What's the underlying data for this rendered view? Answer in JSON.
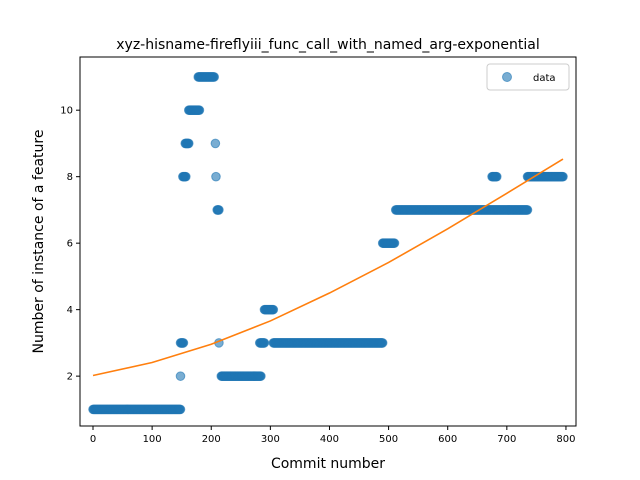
{
  "chart_data": {
    "type": "scatter",
    "title": "xyz-hisname-fireflyiii_func_call_with_named_arg-exponential",
    "xlabel": "Commit number",
    "ylabel": "Number of instance of a feature",
    "xlim": [
      -22,
      817
    ],
    "ylim": [
      0.5,
      11.6
    ],
    "xticks": [
      0,
      100,
      200,
      300,
      400,
      500,
      600,
      700,
      800
    ],
    "yticks": [
      2,
      4,
      6,
      8,
      10
    ],
    "grid": false,
    "legend": {
      "placement": "upper right",
      "entries": [
        "data"
      ]
    },
    "colors": {
      "data": "#1f77b4",
      "fit": "#ff7f0e"
    },
    "series": [
      {
        "name": "data",
        "kind": "scatter",
        "segments": [
          {
            "x_start": 0,
            "x_end": 148,
            "y": 1
          },
          {
            "x_start": 148,
            "x_end": 153,
            "y": 3
          },
          {
            "x_start": 152,
            "x_end": 157,
            "y": 8
          },
          {
            "x_start": 156,
            "x_end": 162,
            "y": 9
          },
          {
            "x_start": 162,
            "x_end": 180,
            "y": 10
          },
          {
            "x_start": 178,
            "x_end": 205,
            "y": 11
          },
          {
            "x_start": 207,
            "x_end": 207,
            "y": 9
          },
          {
            "x_start": 208,
            "x_end": 208,
            "y": 8
          },
          {
            "x_start": 210,
            "x_end": 213,
            "y": 7
          },
          {
            "x_start": 217,
            "x_end": 284,
            "y": 2
          },
          {
            "x_start": 282,
            "x_end": 290,
            "y": 3
          },
          {
            "x_start": 290,
            "x_end": 305,
            "y": 4
          },
          {
            "x_start": 305,
            "x_end": 490,
            "y": 3
          },
          {
            "x_start": 490,
            "x_end": 510,
            "y": 6
          },
          {
            "x_start": 512,
            "x_end": 735,
            "y": 7
          },
          {
            "x_start": 675,
            "x_end": 683,
            "y": 8
          },
          {
            "x_start": 735,
            "x_end": 795,
            "y": 8
          }
        ],
        "extra_points": [
          {
            "x": 148,
            "y": 2
          },
          {
            "x": 213,
            "y": 3
          }
        ]
      },
      {
        "kind": "line",
        "model": "exponential",
        "x": [
          0,
          100,
          200,
          300,
          400,
          500,
          600,
          700,
          795
        ],
        "y": [
          2.02,
          2.41,
          2.96,
          3.66,
          4.5,
          5.42,
          6.43,
          7.5,
          8.53
        ]
      }
    ]
  }
}
